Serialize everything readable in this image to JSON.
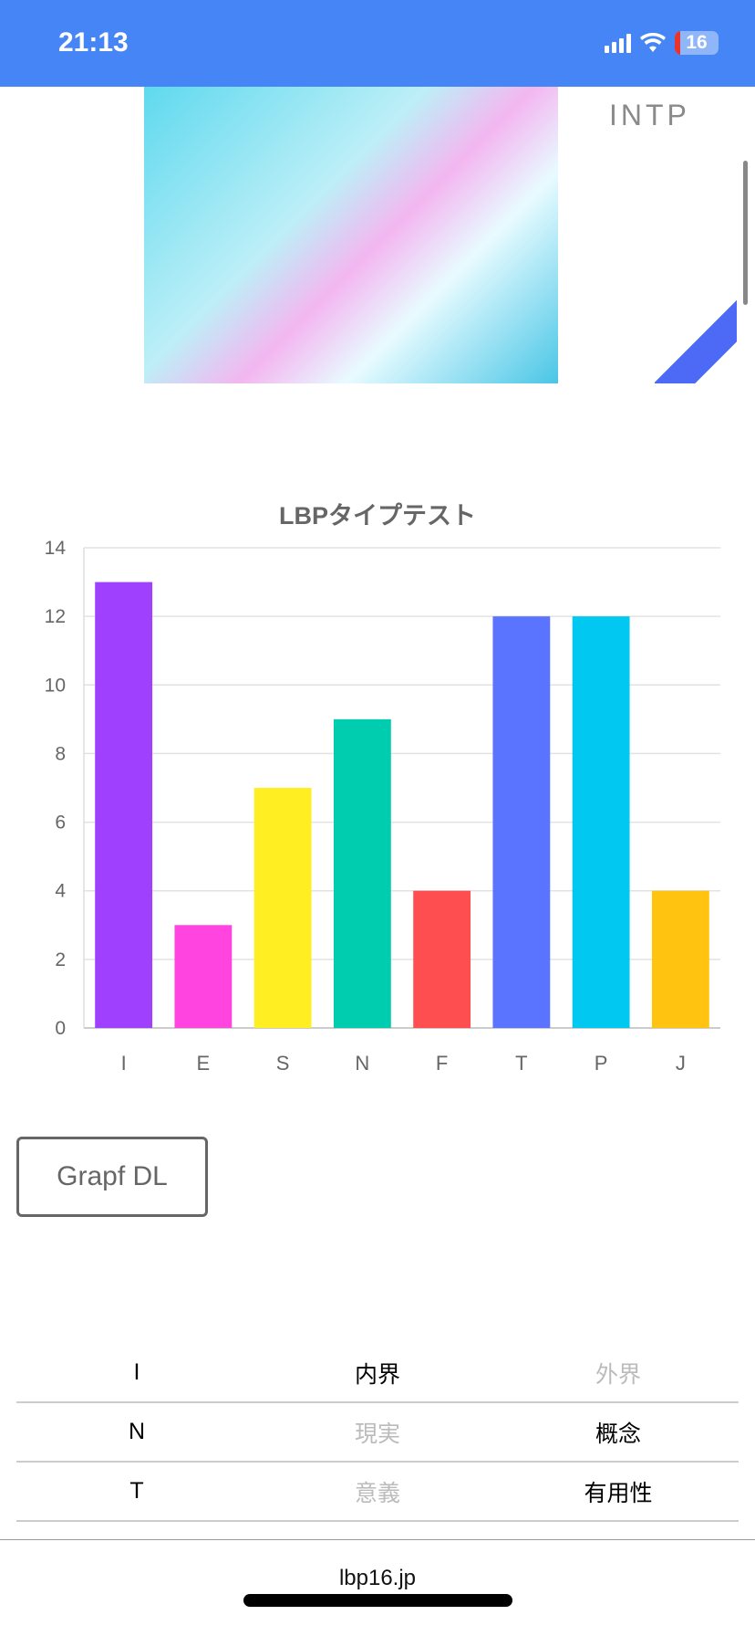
{
  "status_bar": {
    "time": "21:13",
    "battery": "16"
  },
  "hero": {
    "type_label": "INTP"
  },
  "chart_data": {
    "type": "bar",
    "title": "LBPタイプテスト",
    "categories": [
      "I",
      "E",
      "S",
      "N",
      "F",
      "T",
      "P",
      "J"
    ],
    "values": [
      13,
      3,
      7,
      9,
      4,
      12,
      12,
      4
    ],
    "colors": [
      "#a040ff",
      "#ff44e0",
      "#ffee22",
      "#00ccb0",
      "#ff4e50",
      "#5a74ff",
      "#00c8f0",
      "#ffc310"
    ],
    "yticks": [
      0,
      2,
      4,
      6,
      8,
      10,
      12,
      14
    ],
    "ylim": [
      0,
      14
    ],
    "grid": true,
    "xlabel": "",
    "ylabel": ""
  },
  "download_button": "Grapf DL",
  "table": [
    {
      "letter": "I",
      "left": "内界",
      "right": "外界",
      "selected": "left"
    },
    {
      "letter": "N",
      "left": "現実",
      "right": "概念",
      "selected": "right"
    },
    {
      "letter": "T",
      "left": "意義",
      "right": "有用性",
      "selected": "right"
    }
  ],
  "footer": {
    "url": "lbp16.jp"
  }
}
